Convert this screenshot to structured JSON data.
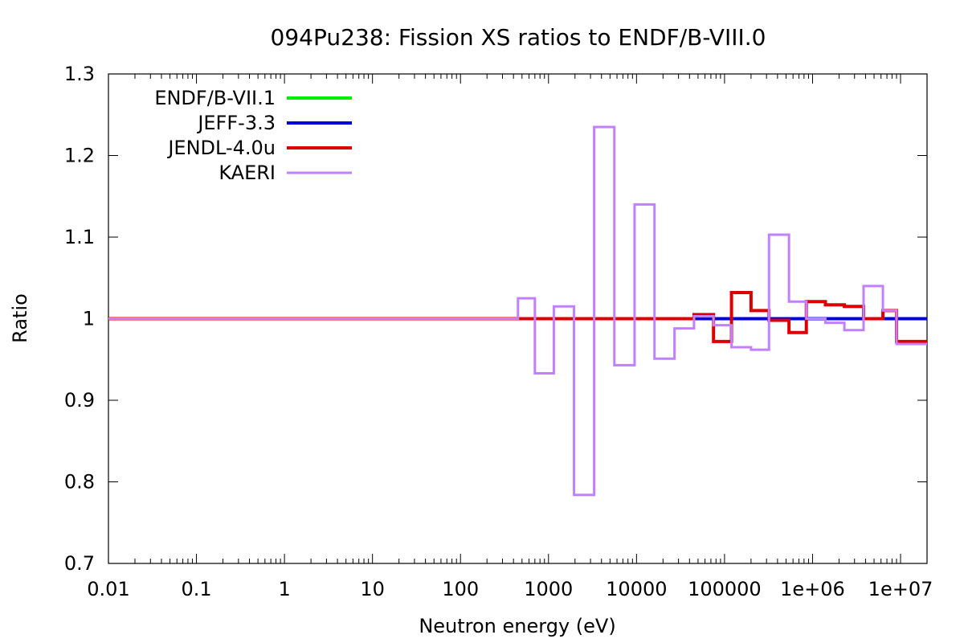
{
  "chart_data": {
    "type": "line",
    "title": "094Pu238: Fission XS ratios to ENDF/B-VIII.0",
    "xlabel": "Neutron energy (eV)",
    "ylabel": "Ratio",
    "x_scale": "log",
    "xlim": [
      0.01,
      20000000
    ],
    "ylim": [
      0.7,
      1.3
    ],
    "grid": false,
    "legend_position": "top-left",
    "x_tick_labels": [
      "0.01",
      "0.1",
      "1",
      "10",
      "100",
      "1000",
      "10000",
      "100000",
      "1e+06",
      "1e+07"
    ],
    "y_tick_labels": [
      "0.7",
      "0.8",
      "0.9",
      "1",
      "1.1",
      "1.2",
      "1.3"
    ],
    "series": [
      {
        "name": "ENDF/B-VII.1",
        "color": "#00ee00",
        "step": true,
        "points": [
          [
            0.01,
            1.0
          ],
          [
            20000000,
            1.0
          ]
        ]
      },
      {
        "name": "JEFF-3.3",
        "color": "#0000dd",
        "step": true,
        "points": [
          [
            0.01,
            1.0
          ],
          [
            20000000,
            1.0
          ]
        ]
      },
      {
        "name": "JENDL-4.0u",
        "color": "#dd0000",
        "step": true,
        "points": [
          [
            0.01,
            1.0
          ],
          [
            45000,
            1.0
          ],
          [
            45000,
            1.005
          ],
          [
            75000,
            1.005
          ],
          [
            75000,
            0.972
          ],
          [
            120000,
            0.972
          ],
          [
            120000,
            1.032
          ],
          [
            200000,
            1.032
          ],
          [
            200000,
            1.01
          ],
          [
            320000,
            1.01
          ],
          [
            320000,
            0.998
          ],
          [
            540000,
            0.998
          ],
          [
            540000,
            0.983
          ],
          [
            850000,
            0.983
          ],
          [
            850000,
            1.021
          ],
          [
            1400000,
            1.021
          ],
          [
            1400000,
            1.017
          ],
          [
            2300000,
            1.017
          ],
          [
            2300000,
            1.015
          ],
          [
            3800000,
            1.015
          ],
          [
            3800000,
            1.0
          ],
          [
            6300000,
            1.0
          ],
          [
            6300000,
            1.01
          ],
          [
            9000000,
            1.01
          ],
          [
            9000000,
            0.972
          ],
          [
            20000000,
            0.972
          ]
        ]
      },
      {
        "name": "KAERI",
        "color": "#c080ff",
        "step": true,
        "points": [
          [
            0.01,
            1.0
          ],
          [
            450,
            1.0
          ],
          [
            450,
            1.025
          ],
          [
            700,
            1.025
          ],
          [
            700,
            0.933
          ],
          [
            1150,
            0.933
          ],
          [
            1150,
            1.015
          ],
          [
            1950,
            1.015
          ],
          [
            1950,
            0.784
          ],
          [
            3300,
            0.784
          ],
          [
            3300,
            1.235
          ],
          [
            5600,
            1.235
          ],
          [
            5600,
            0.943
          ],
          [
            9500,
            0.943
          ],
          [
            9500,
            1.14
          ],
          [
            16000,
            1.14
          ],
          [
            16000,
            0.951
          ],
          [
            27000,
            0.951
          ],
          [
            27000,
            0.988
          ],
          [
            45000,
            0.988
          ],
          [
            45000,
            1.003
          ],
          [
            75000,
            1.003
          ],
          [
            75000,
            0.992
          ],
          [
            120000,
            0.992
          ],
          [
            120000,
            0.965
          ],
          [
            200000,
            0.965
          ],
          [
            200000,
            0.962
          ],
          [
            320000,
            0.962
          ],
          [
            320000,
            1.103
          ],
          [
            540000,
            1.103
          ],
          [
            540000,
            1.021
          ],
          [
            850000,
            1.021
          ],
          [
            850000,
            1.0
          ],
          [
            1400000,
            1.0
          ],
          [
            1400000,
            0.995
          ],
          [
            2300000,
            0.995
          ],
          [
            2300000,
            0.986
          ],
          [
            3800000,
            0.986
          ],
          [
            3800000,
            1.04
          ],
          [
            6300000,
            1.04
          ],
          [
            6300000,
            1.01
          ],
          [
            9000000,
            1.01
          ],
          [
            9000000,
            0.969
          ],
          [
            20000000,
            0.969
          ]
        ]
      }
    ]
  }
}
